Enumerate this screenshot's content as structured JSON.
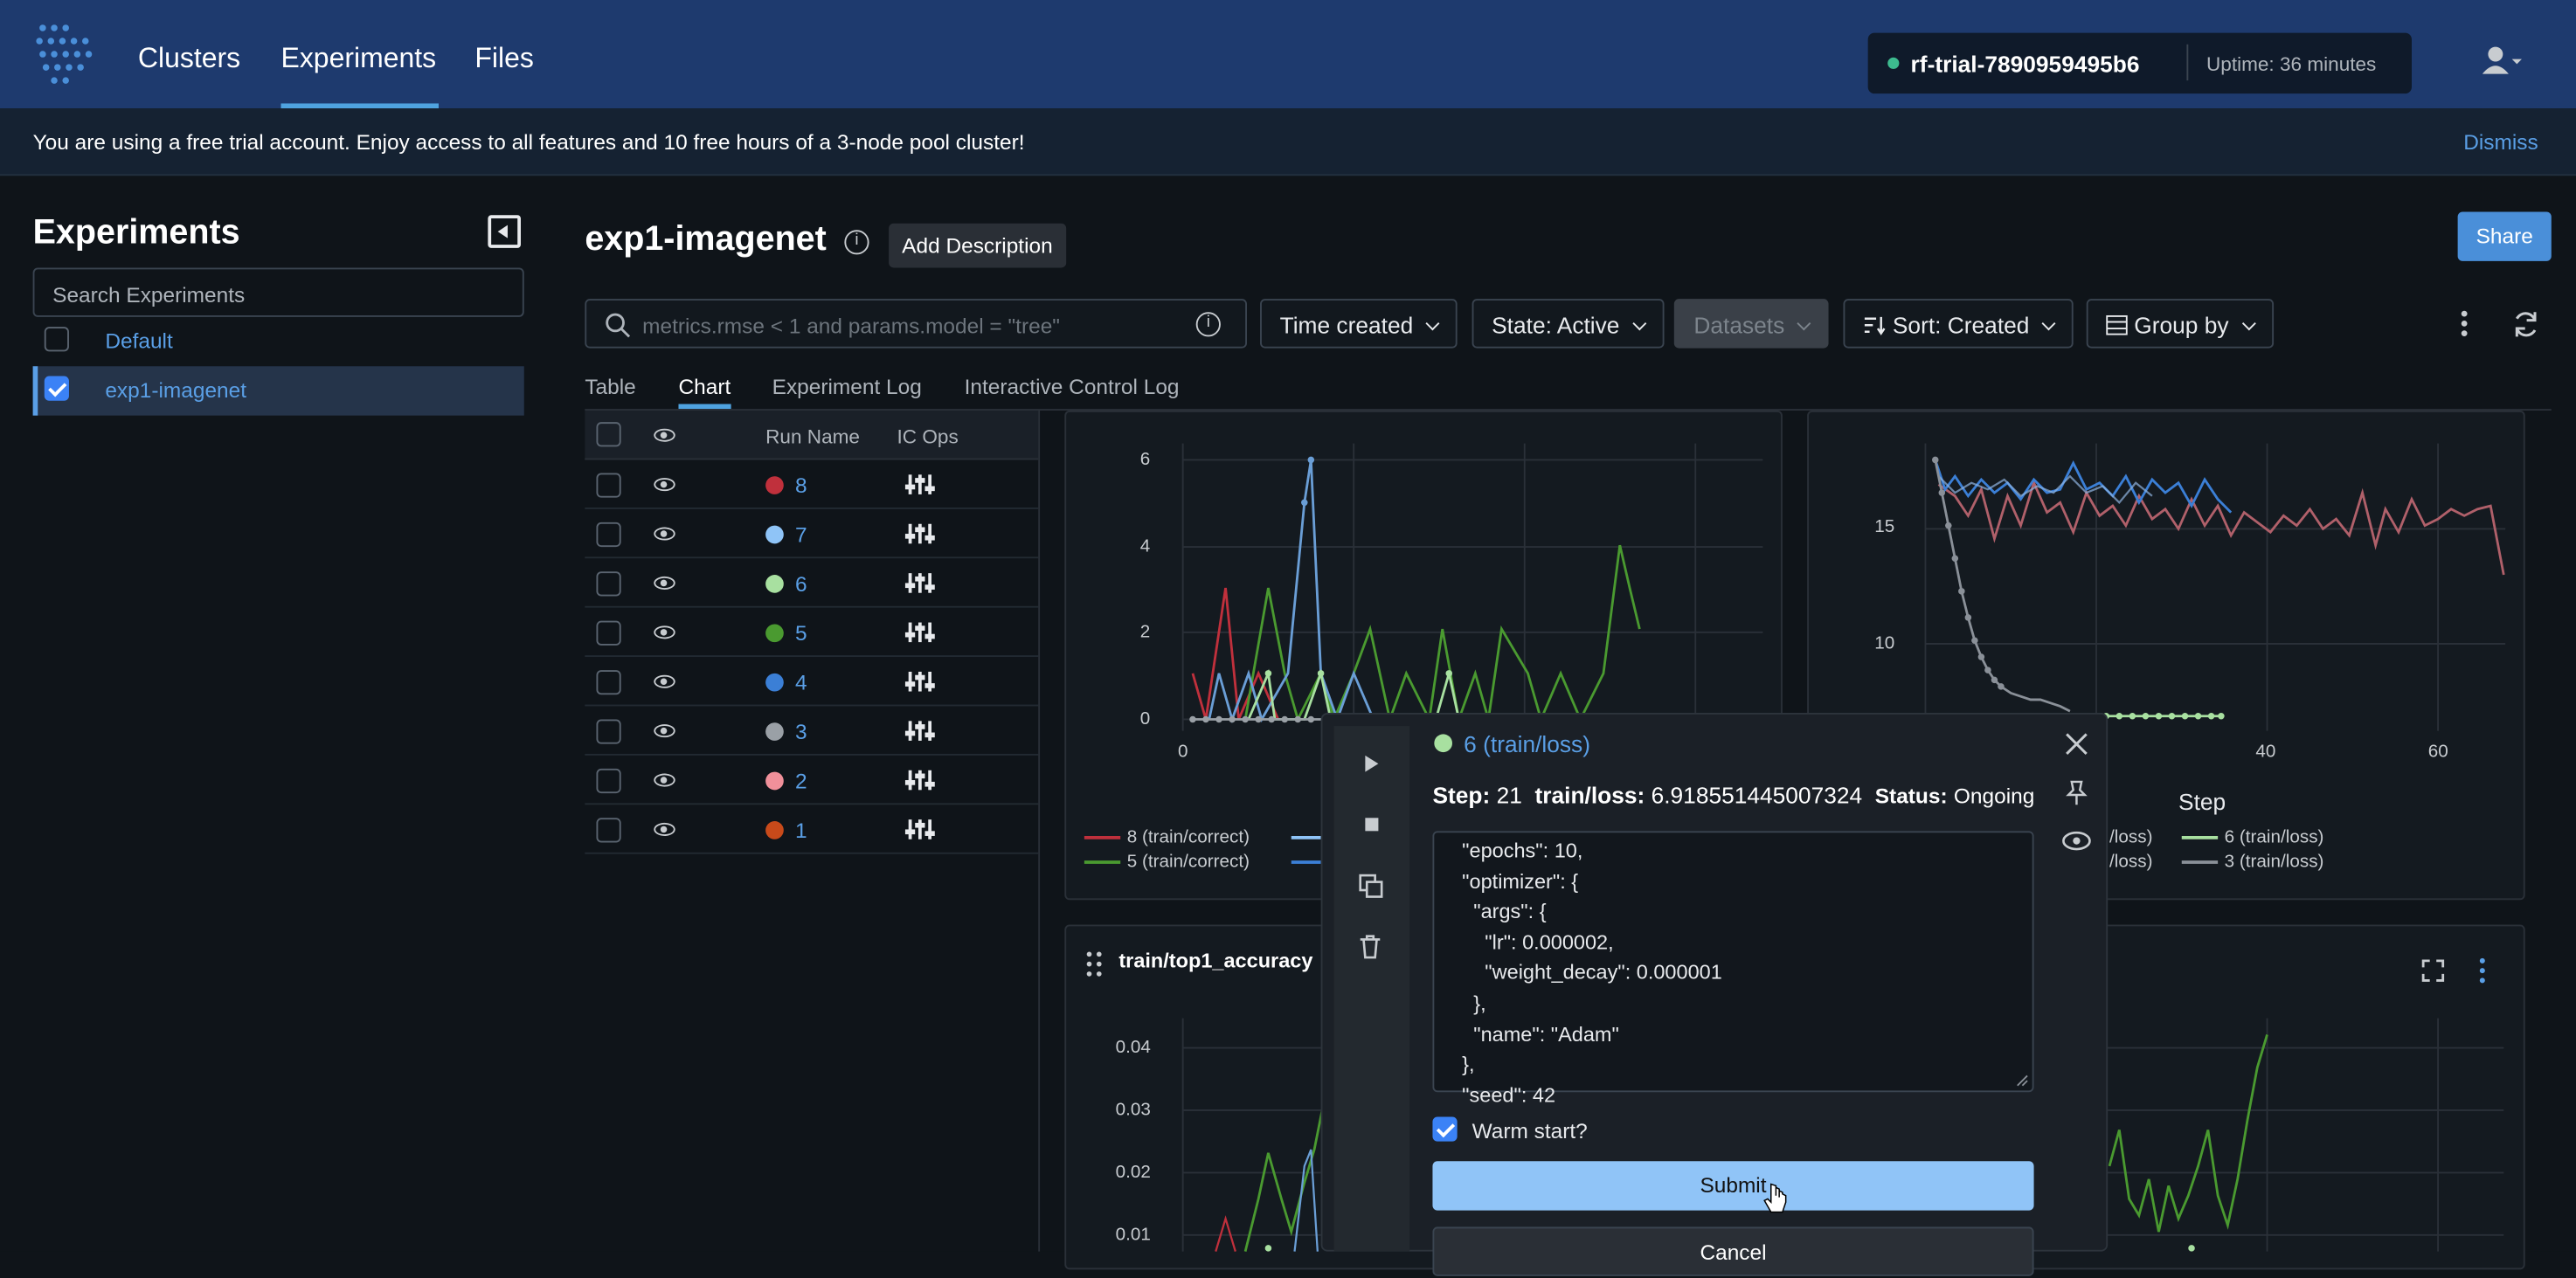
{
  "nav": {
    "clusters": "Clusters",
    "experiments": "Experiments",
    "files": "Files",
    "trial_name": "rf-trial-7890959495b6",
    "uptime": "Uptime: 36 minutes"
  },
  "banner": {
    "text": "You are using a free trial account. Enjoy access to all features and 10 free hours of a 3-node pool cluster!",
    "dismiss": "Dismiss"
  },
  "sidebar": {
    "title": "Experiments",
    "search_placeholder": "Search Experiments",
    "items": [
      {
        "label": "Default",
        "checked": false
      },
      {
        "label": "exp1-imagenet",
        "checked": true
      }
    ]
  },
  "main": {
    "title": "exp1-imagenet",
    "add_description": "Add Description",
    "share": "Share",
    "filter_placeholder": "metrics.rmse < 1 and params.model = \"tree\"",
    "time_created": "Time created",
    "state": "State: Active",
    "datasets": "Datasets",
    "sort": "Sort: Created",
    "group_by": "Group by",
    "tabs": [
      "Table",
      "Chart",
      "Experiment Log",
      "Interactive Control Log"
    ]
  },
  "runs_table": {
    "headers": {
      "run_name": "Run Name",
      "ic_ops": "IC Ops"
    },
    "rows": [
      {
        "name": "8",
        "color": "#c0303c"
      },
      {
        "name": "7",
        "color": "#8fc4f7"
      },
      {
        "name": "6",
        "color": "#a8e0a0"
      },
      {
        "name": "5",
        "color": "#4a9a30"
      },
      {
        "name": "4",
        "color": "#3b7fd6"
      },
      {
        "name": "3",
        "color": "#9aa0a6"
      },
      {
        "name": "2",
        "color": "#f0909a"
      },
      {
        "name": "1",
        "color": "#c84a1a"
      }
    ]
  },
  "charts": {
    "left_top": {
      "y_ticks": [
        "6",
        "4",
        "2",
        "0"
      ],
      "x_ticks": [
        "0"
      ],
      "legend": [
        "8 (train/correct)",
        "5 (train/correct)"
      ]
    },
    "right_top": {
      "y_ticks": [
        "15",
        "10"
      ],
      "x_ticks": [
        "40",
        "60"
      ],
      "xlabel": "Step",
      "legend": [
        "/loss)",
        "/loss)",
        "6 (train/loss)",
        "3 (train/loss)"
      ]
    },
    "bottom": {
      "title": "train/top1_accuracy",
      "y_ticks": [
        "0.04",
        "0.03",
        "0.02",
        "0.01"
      ]
    }
  },
  "popup": {
    "title": "6 (train/loss)",
    "step_label": "Step:",
    "step_value": "21",
    "metric_label": "train/loss:",
    "metric_value": "6.918551445007324",
    "status_label": "Status:",
    "status_value": "Ongoing",
    "config_lines": [
      "  \"epochs\": 10,",
      "  \"optimizer\": {",
      "    \"args\": {",
      "      \"lr\": 0.000002,",
      "      \"weight_decay\": 0.000001",
      "    },",
      "    \"name\": \"Adam\"",
      "  },",
      "  \"seed\": 42"
    ],
    "warm_start": "Warm start?",
    "submit": "Submit",
    "cancel": "Cancel"
  }
}
